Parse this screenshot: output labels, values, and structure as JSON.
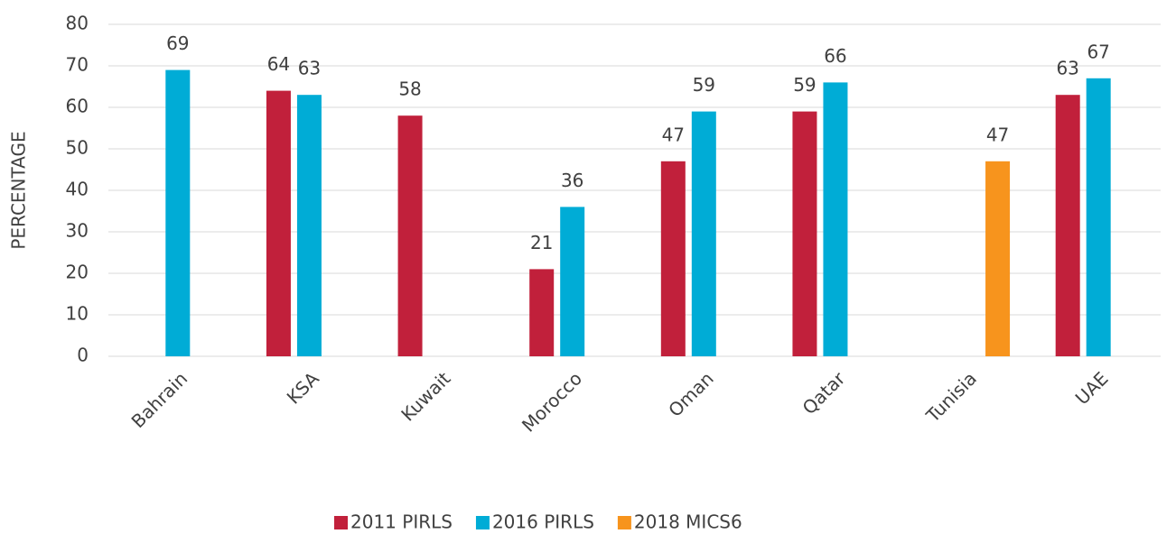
{
  "chart_data": {
    "type": "bar",
    "categories": [
      "Bahrain",
      "KSA",
      "Kuwait",
      "Morocco",
      "Oman",
      "Qatar",
      "Tunisia",
      "UAE"
    ],
    "series": [
      {
        "name": "2011 PIRLS",
        "color": "#c1203b",
        "values": [
          null,
          64,
          58,
          21,
          47,
          59,
          null,
          63
        ]
      },
      {
        "name": "2016 PIRLS",
        "color": "#00acd6",
        "values": [
          69,
          63,
          null,
          36,
          59,
          66,
          null,
          67
        ]
      },
      {
        "name": "2018 MICS6",
        "color": "#f7941d",
        "values": [
          null,
          null,
          null,
          null,
          null,
          null,
          47,
          null
        ]
      }
    ],
    "y_label": "PERCENTAGE",
    "ylim": [
      0,
      80
    ],
    "yticks": [
      0,
      10,
      20,
      30,
      40,
      50,
      60,
      70,
      80
    ],
    "grid": true,
    "legend": "bottom"
  }
}
